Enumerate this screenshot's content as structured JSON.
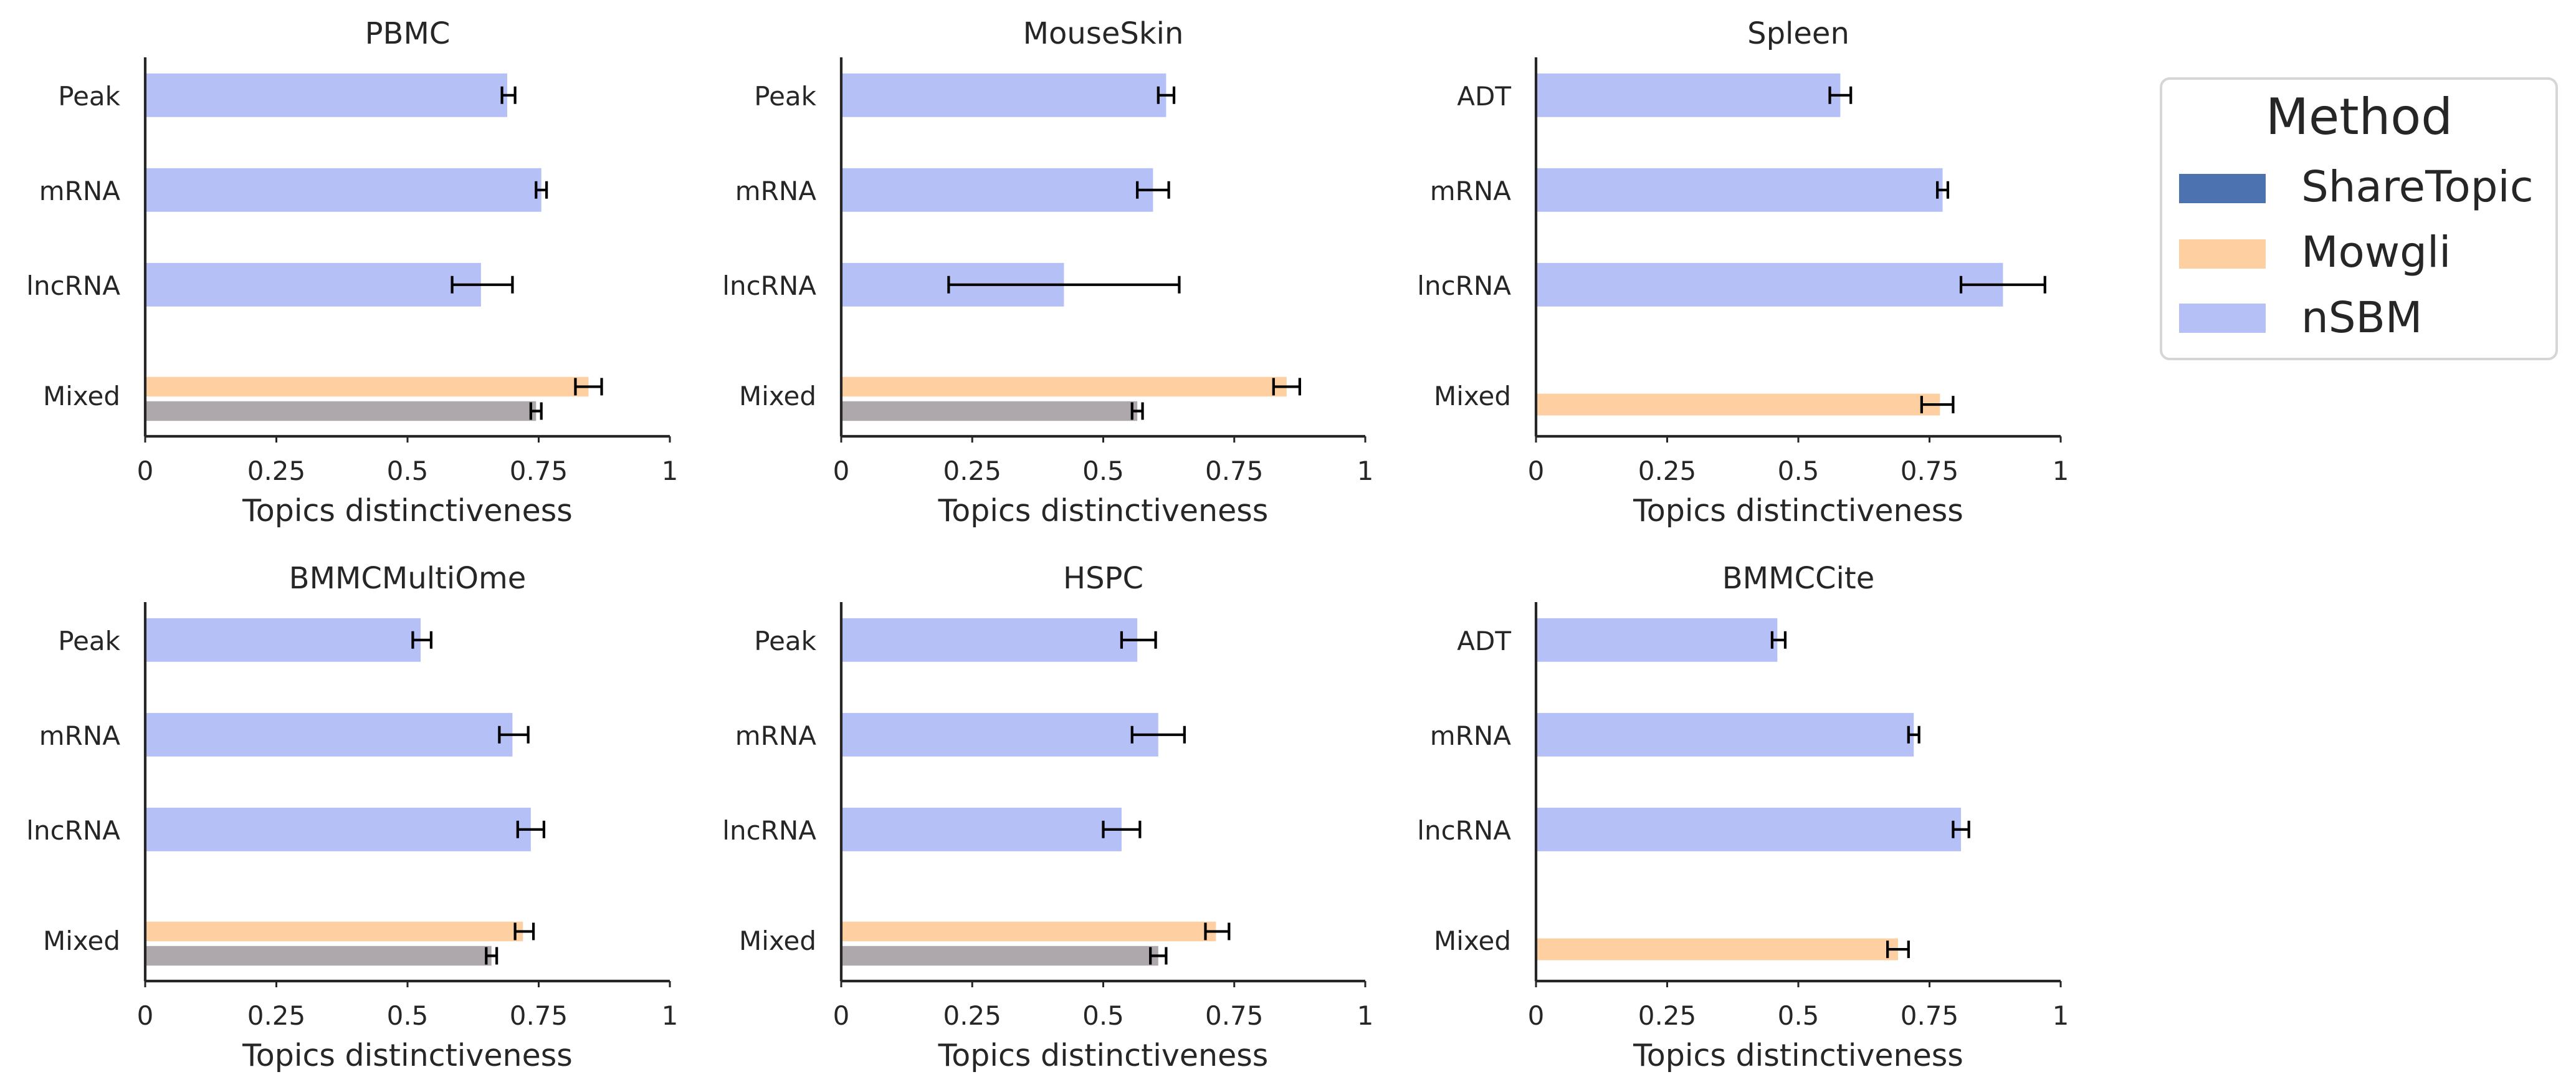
{
  "legend": {
    "title": "Method",
    "placement": "upper-right",
    "items": [
      {
        "label": "ShareTopic",
        "color": "#4c72b0",
        "text_color": "#8c7d80"
      },
      {
        "label": "Mowgli",
        "color": "#fdcfa1",
        "text_color": "#f6bb85"
      },
      {
        "label": "nSBM",
        "color": "#b5c0f7",
        "text_color": "#9aabf1"
      }
    ]
  },
  "colors": {
    "ShareTopic_bar": "#aea7ab",
    "Mowgli_bar": "#fdcfa1",
    "nSBM_bar": "#b5c0f7",
    "error_bar": "#000000",
    "axis": "#262626"
  },
  "chart_data": [
    {
      "type": "bar",
      "orientation": "horizontal",
      "title": "PBMC",
      "categories": [
        "Peak",
        "mRNA",
        "lncRNA",
        "Mixed"
      ],
      "xlabel": "Topics distinctiveness",
      "xlim": [
        0,
        1
      ],
      "xticks": [
        0,
        0.25,
        0.5,
        0.75,
        1
      ],
      "xtick_labels": [
        "0",
        "0.25",
        "0.5",
        "0.75",
        "1"
      ],
      "grid": false,
      "series": [
        {
          "name": "nSBM",
          "values": [
            0.69,
            0.755,
            0.64,
            null
          ],
          "err_low": [
            0.68,
            0.745,
            0.585,
            null
          ],
          "err_high": [
            0.705,
            0.765,
            0.7,
            null
          ]
        },
        {
          "name": "Mowgli",
          "values": [
            null,
            null,
            null,
            0.845
          ],
          "err_low": [
            null,
            null,
            null,
            0.82
          ],
          "err_high": [
            null,
            null,
            null,
            0.87
          ]
        },
        {
          "name": "ShareTopic",
          "values": [
            null,
            null,
            null,
            0.745
          ],
          "err_low": [
            null,
            null,
            null,
            0.735
          ],
          "err_high": [
            null,
            null,
            null,
            0.755
          ]
        }
      ]
    },
    {
      "type": "bar",
      "orientation": "horizontal",
      "title": "MouseSkin",
      "categories": [
        "Peak",
        "mRNA",
        "lncRNA",
        "Mixed"
      ],
      "xlabel": "Topics distinctiveness",
      "xlim": [
        0,
        1
      ],
      "xticks": [
        0,
        0.25,
        0.5,
        0.75,
        1
      ],
      "xtick_labels": [
        "0",
        "0.25",
        "0.5",
        "0.75",
        "1"
      ],
      "grid": false,
      "series": [
        {
          "name": "nSBM",
          "values": [
            0.62,
            0.595,
            0.425,
            null
          ],
          "err_low": [
            0.605,
            0.565,
            0.205,
            null
          ],
          "err_high": [
            0.635,
            0.625,
            0.645,
            null
          ]
        },
        {
          "name": "Mowgli",
          "values": [
            null,
            null,
            null,
            0.85
          ],
          "err_low": [
            null,
            null,
            null,
            0.825
          ],
          "err_high": [
            null,
            null,
            null,
            0.875
          ]
        },
        {
          "name": "ShareTopic",
          "values": [
            null,
            null,
            null,
            0.565
          ],
          "err_low": [
            null,
            null,
            null,
            0.555
          ],
          "err_high": [
            null,
            null,
            null,
            0.575
          ]
        }
      ]
    },
    {
      "type": "bar",
      "orientation": "horizontal",
      "title": "Spleen",
      "categories": [
        "ADT",
        "mRNA",
        "lncRNA",
        "Mixed"
      ],
      "xlabel": "Topics distinctiveness",
      "xlim": [
        0,
        1
      ],
      "xticks": [
        0,
        0.25,
        0.5,
        0.75,
        1
      ],
      "xtick_labels": [
        "0",
        "0.25",
        "0.5",
        "0.75",
        "1"
      ],
      "grid": false,
      "series": [
        {
          "name": "nSBM",
          "values": [
            0.58,
            0.775,
            0.89,
            null
          ],
          "err_low": [
            0.56,
            0.765,
            0.81,
            null
          ],
          "err_high": [
            0.6,
            0.785,
            0.97,
            null
          ]
        },
        {
          "name": "Mowgli",
          "values": [
            null,
            null,
            null,
            0.77
          ],
          "err_low": [
            null,
            null,
            null,
            0.735
          ],
          "err_high": [
            null,
            null,
            null,
            0.795
          ]
        }
      ]
    },
    {
      "type": "bar",
      "orientation": "horizontal",
      "title": "BMMCMultiOme",
      "categories": [
        "Peak",
        "mRNA",
        "lncRNA",
        "Mixed"
      ],
      "xlabel": "Topics distinctiveness",
      "xlim": [
        0,
        1
      ],
      "xticks": [
        0,
        0.25,
        0.5,
        0.75,
        1
      ],
      "xtick_labels": [
        "0",
        "0.25",
        "0.5",
        "0.75",
        "1"
      ],
      "grid": false,
      "series": [
        {
          "name": "nSBM",
          "values": [
            0.525,
            0.7,
            0.735,
            null
          ],
          "err_low": [
            0.51,
            0.675,
            0.71,
            null
          ],
          "err_high": [
            0.545,
            0.73,
            0.76,
            null
          ]
        },
        {
          "name": "Mowgli",
          "values": [
            null,
            null,
            null,
            0.72
          ],
          "err_low": [
            null,
            null,
            null,
            0.705
          ],
          "err_high": [
            null,
            null,
            null,
            0.74
          ]
        },
        {
          "name": "ShareTopic",
          "values": [
            null,
            null,
            null,
            0.66
          ],
          "err_low": [
            null,
            null,
            null,
            0.65
          ],
          "err_high": [
            null,
            null,
            null,
            0.67
          ]
        }
      ]
    },
    {
      "type": "bar",
      "orientation": "horizontal",
      "title": "HSPC",
      "categories": [
        "Peak",
        "mRNA",
        "lncRNA",
        "Mixed"
      ],
      "xlabel": "Topics distinctiveness",
      "xlim": [
        0,
        1
      ],
      "xticks": [
        0,
        0.25,
        0.5,
        0.75,
        1
      ],
      "xtick_labels": [
        "0",
        "0.25",
        "0.5",
        "0.75",
        "1"
      ],
      "grid": false,
      "series": [
        {
          "name": "nSBM",
          "values": [
            0.565,
            0.605,
            0.535,
            null
          ],
          "err_low": [
            0.535,
            0.555,
            0.5,
            null
          ],
          "err_high": [
            0.6,
            0.655,
            0.57,
            null
          ]
        },
        {
          "name": "Mowgli",
          "values": [
            null,
            null,
            null,
            0.715
          ],
          "err_low": [
            null,
            null,
            null,
            0.695
          ],
          "err_high": [
            null,
            null,
            null,
            0.74
          ]
        },
        {
          "name": "ShareTopic",
          "values": [
            null,
            null,
            null,
            0.605
          ],
          "err_low": [
            null,
            null,
            null,
            0.59
          ],
          "err_high": [
            null,
            null,
            null,
            0.62
          ]
        }
      ]
    },
    {
      "type": "bar",
      "orientation": "horizontal",
      "title": "BMMCCite",
      "categories": [
        "ADT",
        "mRNA",
        "lncRNA",
        "Mixed"
      ],
      "xlabel": "Topics distinctiveness",
      "xlim": [
        0,
        1
      ],
      "xticks": [
        0,
        0.25,
        0.5,
        0.75,
        1
      ],
      "xtick_labels": [
        "0",
        "0.25",
        "0.5",
        "0.75",
        "1"
      ],
      "grid": false,
      "series": [
        {
          "name": "nSBM",
          "values": [
            0.46,
            0.72,
            0.81,
            null
          ],
          "err_low": [
            0.45,
            0.71,
            0.795,
            null
          ],
          "err_high": [
            0.475,
            0.73,
            0.825,
            null
          ]
        },
        {
          "name": "Mowgli",
          "values": [
            null,
            null,
            null,
            0.69
          ],
          "err_low": [
            null,
            null,
            null,
            0.67
          ],
          "err_high": [
            null,
            null,
            null,
            0.71
          ]
        }
      ]
    }
  ]
}
